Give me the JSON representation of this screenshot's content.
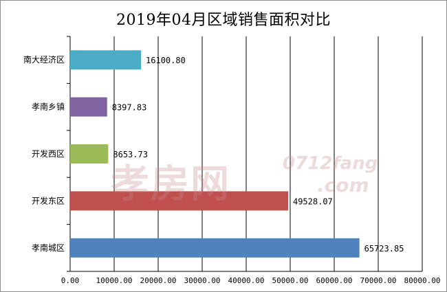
{
  "chart_data": {
    "type": "bar",
    "orientation": "horizontal",
    "title": "2019年04月区域销售面积对比",
    "categories": [
      "南大经济区",
      "孝南乡镇",
      "开发西区",
      "开发东区",
      "孝南城区"
    ],
    "values": [
      16100.8,
      8397.83,
      8653.73,
      49528.07,
      65723.85
    ],
    "value_labels": [
      "16100.80",
      "8397.83",
      "8653.73",
      "49528.07",
      "65723.85"
    ],
    "colors": [
      "#4bacc6",
      "#8064a2",
      "#9bbb59",
      "#c0504d",
      "#4f81bd"
    ],
    "xlim": [
      0,
      80000
    ],
    "xticks": [
      0,
      10000,
      20000,
      30000,
      40000,
      50000,
      60000,
      70000,
      80000
    ],
    "xtick_labels": [
      "0.00",
      "10000.00",
      "20000.00",
      "30000.00",
      "40000.00",
      "50000.00",
      "60000.00",
      "70000.00",
      "80000.00"
    ],
    "grid": "vertical",
    "legend": "none"
  },
  "watermark": {
    "text": "孝房网",
    "domain": "0712fang",
    "com": ".com"
  }
}
